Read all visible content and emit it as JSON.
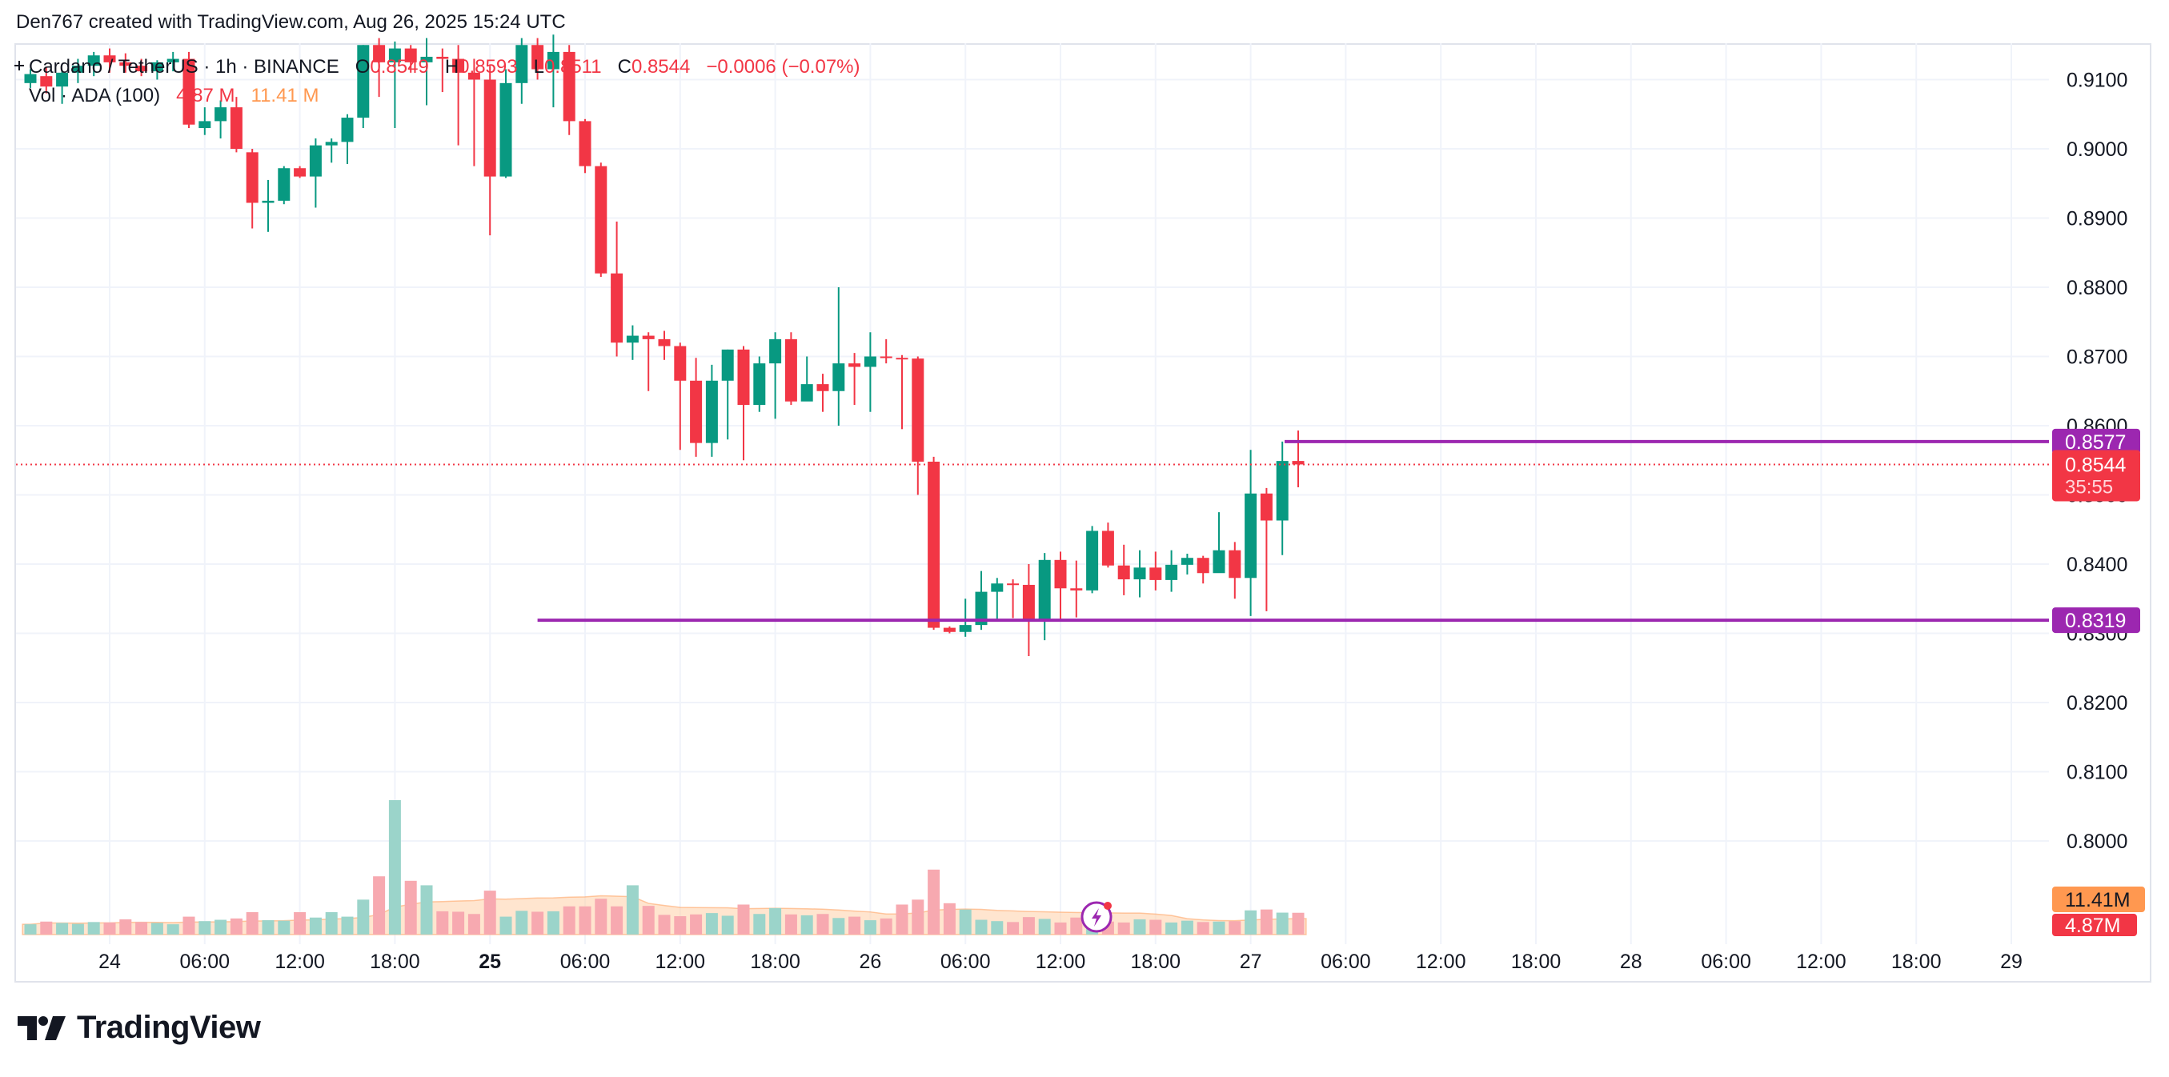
{
  "credit": "Den767 created with TradingView.com, Aug 26, 2025 15:24 UTC",
  "brand": "TradingView",
  "legend": {
    "pair": "Cardano / TetherUS · 1h · BINANCE",
    "open_label": "O",
    "open": "0.8549",
    "high_label": "H",
    "high": "0.8593",
    "low_label": "L",
    "low": "0.8511",
    "close_label": "C",
    "close": "0.8544",
    "change": "−0.0006 (−0.07%)",
    "volume_label": "Vol · ADA (100)",
    "volume_value": "4.87 M",
    "volume_ma": "11.41 M"
  },
  "colors": {
    "up": "#089981",
    "down": "#f23645",
    "vol_up": "#9bd4ca",
    "vol_down": "#f7a9b0",
    "vol_ma_area": "#ffcfa8",
    "level_line": "#9c27b0",
    "grid": "#f0f3fa",
    "text": "#131722"
  },
  "chart_data": {
    "type": "candlestick",
    "title": "Cardano / TetherUS · 1h · BINANCE",
    "interval": "1h",
    "x_tick_labels": [
      "24",
      "06:00",
      "12:00",
      "18:00",
      "25",
      "06:00",
      "12:00",
      "18:00",
      "26",
      "06:00",
      "12:00",
      "18:00",
      "27",
      "06:00",
      "12:00",
      "18:00",
      "28",
      "06:00",
      "12:00",
      "18:00",
      "29"
    ],
    "y_tick_labels": [
      "0.9100",
      "0.9000",
      "0.8900",
      "0.8800",
      "0.8700",
      "0.8600",
      "0.8500",
      "0.8400",
      "0.8300",
      "0.8200",
      "0.8100",
      "0.8000"
    ],
    "ylim": [
      0.7905,
      0.9155
    ],
    "grid": true,
    "current_price": "0.8544",
    "countdown": "35:55",
    "volume_ma_label": "11.41M",
    "volume_last_label": "4.87M",
    "levels": [
      {
        "price": 0.8577,
        "label": "0.8577"
      },
      {
        "price": 0.8319,
        "label": "0.8319"
      }
    ],
    "first_candle_time": "2025-08-23 19:00 UTC",
    "candles_ohlcv": [
      [
        0.9095,
        0.9115,
        0.9088,
        0.9108,
        2.3
      ],
      [
        0.9105,
        0.9118,
        0.908,
        0.909,
        2.9
      ],
      [
        0.909,
        0.9113,
        0.9065,
        0.911,
        2.6
      ],
      [
        0.911,
        0.913,
        0.9095,
        0.912,
        2.4
      ],
      [
        0.912,
        0.914,
        0.9105,
        0.9135,
        2.8
      ],
      [
        0.9135,
        0.9145,
        0.911,
        0.9125,
        2.7
      ],
      [
        0.9125,
        0.9138,
        0.911,
        0.912,
        3.4
      ],
      [
        0.912,
        0.913,
        0.9105,
        0.9112,
        2.8
      ],
      [
        0.9112,
        0.9128,
        0.91,
        0.9125,
        2.6
      ],
      [
        0.9125,
        0.914,
        0.9112,
        0.913,
        2.3
      ],
      [
        0.913,
        0.914,
        0.903,
        0.9035,
        4.0
      ],
      [
        0.903,
        0.906,
        0.902,
        0.904,
        3.0
      ],
      [
        0.904,
        0.907,
        0.9015,
        0.906,
        3.3
      ],
      [
        0.906,
        0.9075,
        0.8995,
        0.9,
        3.6
      ],
      [
        0.8995,
        0.9,
        0.8885,
        0.8922,
        5.0
      ],
      [
        0.8922,
        0.8955,
        0.888,
        0.8925,
        3.2
      ],
      [
        0.8925,
        0.8975,
        0.892,
        0.8972,
        3.1
      ],
      [
        0.8972,
        0.8975,
        0.8958,
        0.896,
        5.0
      ],
      [
        0.896,
        0.9015,
        0.8915,
        0.9005,
        3.8
      ],
      [
        0.9005,
        0.9015,
        0.898,
        0.901,
        5.0
      ],
      [
        0.901,
        0.905,
        0.8978,
        0.9045,
        4.0
      ],
      [
        0.9045,
        0.915,
        0.903,
        0.915,
        7.8
      ],
      [
        0.915,
        0.916,
        0.9075,
        0.9125,
        13.0
      ],
      [
        0.9125,
        0.9155,
        0.903,
        0.9145,
        30.0
      ],
      [
        0.9145,
        0.915,
        0.911,
        0.9125,
        12.0
      ],
      [
        0.9125,
        0.916,
        0.9063,
        0.9133,
        11.0
      ],
      [
        0.9133,
        0.9145,
        0.9082,
        0.913,
        5.2
      ],
      [
        0.913,
        0.915,
        0.9005,
        0.911,
        5.1
      ],
      [
        0.911,
        0.913,
        0.8975,
        0.91,
        4.6
      ],
      [
        0.91,
        0.912,
        0.8875,
        0.896,
        9.8
      ],
      [
        0.896,
        0.9115,
        0.8958,
        0.9095,
        4.0
      ],
      [
        0.9095,
        0.916,
        0.9065,
        0.915,
        5.3
      ],
      [
        0.915,
        0.916,
        0.91,
        0.9115,
        5.1
      ],
      [
        0.9115,
        0.9165,
        0.906,
        0.914,
        5.2
      ],
      [
        0.914,
        0.915,
        0.902,
        0.904,
        6.3
      ],
      [
        0.904,
        0.9043,
        0.8965,
        0.8975,
        6.3
      ],
      [
        0.8975,
        0.898,
        0.8815,
        0.882,
        8.0
      ],
      [
        0.882,
        0.8895,
        0.87,
        0.872,
        6.3
      ],
      [
        0.872,
        0.8745,
        0.8695,
        0.873,
        11.0
      ],
      [
        0.873,
        0.8735,
        0.865,
        0.8725,
        6.4
      ],
      [
        0.8725,
        0.8737,
        0.8695,
        0.8715,
        4.4
      ],
      [
        0.8715,
        0.872,
        0.8565,
        0.8665,
        4.1
      ],
      [
        0.8665,
        0.8698,
        0.8555,
        0.8575,
        4.5
      ],
      [
        0.8575,
        0.8688,
        0.8555,
        0.8665,
        4.8
      ],
      [
        0.8665,
        0.871,
        0.858,
        0.871,
        4.2
      ],
      [
        0.871,
        0.8715,
        0.855,
        0.863,
        6.7
      ],
      [
        0.863,
        0.87,
        0.862,
        0.869,
        4.6
      ],
      [
        0.869,
        0.8735,
        0.861,
        0.8725,
        5.9
      ],
      [
        0.8725,
        0.8735,
        0.863,
        0.8635,
        4.5
      ],
      [
        0.8635,
        0.87,
        0.864,
        0.866,
        4.3
      ],
      [
        0.866,
        0.8675,
        0.862,
        0.865,
        4.6
      ],
      [
        0.865,
        0.88,
        0.86,
        0.869,
        3.7
      ],
      [
        0.869,
        0.8705,
        0.863,
        0.8685,
        4.0
      ],
      [
        0.8685,
        0.8735,
        0.862,
        0.87,
        3.2
      ],
      [
        0.87,
        0.8725,
        0.869,
        0.8698,
        3.6
      ],
      [
        0.8698,
        0.8702,
        0.8595,
        0.8697,
        6.7
      ],
      [
        0.8697,
        0.87,
        0.85,
        0.8548,
        7.8
      ],
      [
        0.8548,
        0.8555,
        0.8305,
        0.8308,
        14.5
      ],
      [
        0.8308,
        0.831,
        0.83,
        0.8302,
        7.0
      ],
      [
        0.8302,
        0.835,
        0.8295,
        0.8312,
        5.6
      ],
      [
        0.8312,
        0.839,
        0.8305,
        0.836,
        3.3
      ],
      [
        0.836,
        0.838,
        0.832,
        0.8372,
        3.0
      ],
      [
        0.8372,
        0.8378,
        0.8322,
        0.837,
        2.8
      ],
      [
        0.837,
        0.84,
        0.8267,
        0.832,
        3.9
      ],
      [
        0.832,
        0.8416,
        0.829,
        0.8406,
        3.5
      ],
      [
        0.8406,
        0.8418,
        0.832,
        0.8365,
        2.7
      ],
      [
        0.8365,
        0.8405,
        0.8323,
        0.8362,
        3.8
      ],
      [
        0.8362,
        0.8455,
        0.8358,
        0.8448,
        3.1
      ],
      [
        0.8448,
        0.846,
        0.8395,
        0.8398,
        2.9
      ],
      [
        0.8398,
        0.8428,
        0.8355,
        0.8378,
        2.7
      ],
      [
        0.8378,
        0.842,
        0.8352,
        0.8395,
        3.4
      ],
      [
        0.8395,
        0.8418,
        0.8362,
        0.8377,
        3.3
      ],
      [
        0.8377,
        0.842,
        0.836,
        0.8399,
        2.7
      ],
      [
        0.8399,
        0.8415,
        0.8385,
        0.8409,
        3.1
      ],
      [
        0.8409,
        0.8412,
        0.8372,
        0.8387,
        2.8
      ],
      [
        0.8387,
        0.8475,
        0.839,
        0.842,
        2.9
      ],
      [
        0.842,
        0.8432,
        0.835,
        0.838,
        3.0
      ],
      [
        0.838,
        0.8565,
        0.8325,
        0.8502,
        5.4
      ],
      [
        0.8502,
        0.851,
        0.8332,
        0.8463,
        5.6
      ],
      [
        0.8463,
        0.8577,
        0.8413,
        0.8549,
        4.9
      ],
      [
        0.8549,
        0.8593,
        0.8511,
        0.8544,
        4.87
      ]
    ]
  }
}
